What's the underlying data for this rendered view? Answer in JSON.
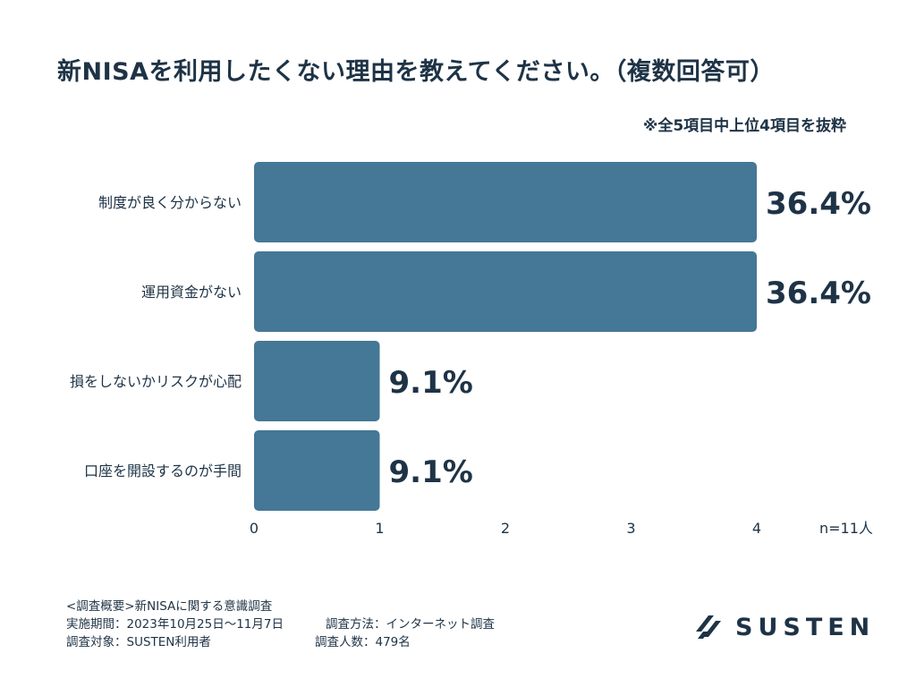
{
  "title": "新NISAを利用したくない理由を教えてください。（複数回答可）",
  "note": "※全5項目中上位4項目を抜粋",
  "chart_data": {
    "type": "bar",
    "orientation": "horizontal",
    "categories": [
      "制度が良く分からない",
      "運用資金がない",
      "損をしないかリスクが心配",
      "口座を開設するのが手間"
    ],
    "values": [
      4,
      4,
      1,
      1
    ],
    "data_labels": [
      "36.4%",
      "36.4%",
      "9.1%",
      "9.1%"
    ],
    "xlim": [
      0,
      4
    ],
    "x_ticks": [
      "0",
      "1",
      "2",
      "3",
      "4"
    ],
    "bar_color": "#457796",
    "grid": false,
    "n_label": "n=11人"
  },
  "footer": {
    "line1": "<調査概要>新NISAに関する意識調査",
    "line2a": "実施期間：2023年10月25日〜11月7日",
    "line2b": "調査方法：インターネット調査",
    "line3a": "調査対象：SUSTEN利用者",
    "line3b": "調査人数：479名"
  },
  "logo": {
    "text": "SUSTEN",
    "icon": "susten-logo-icon",
    "color": "#1e3346"
  }
}
